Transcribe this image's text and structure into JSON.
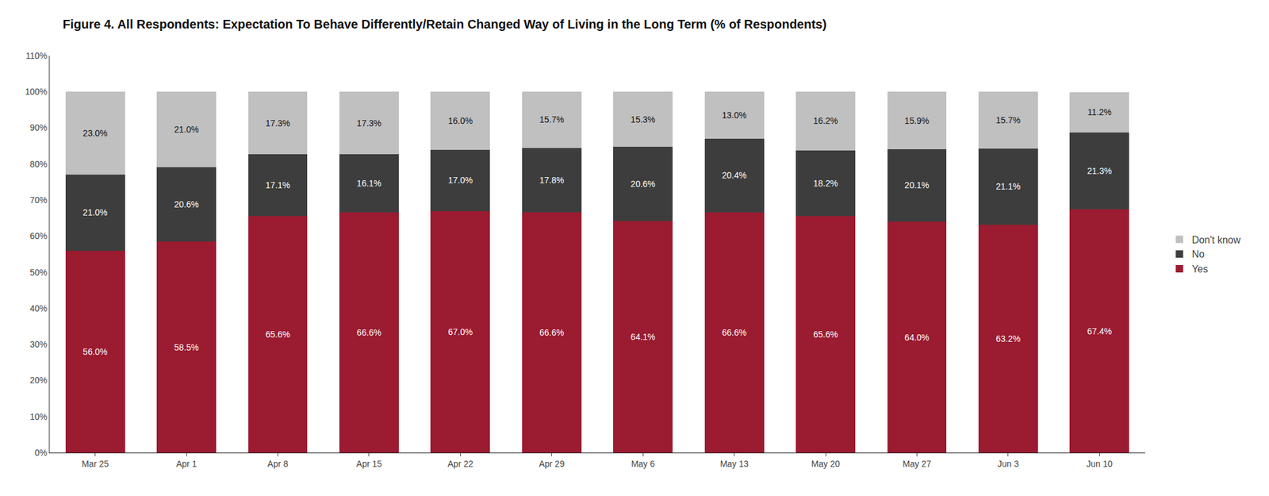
{
  "chart_data": {
    "type": "bar",
    "title": "Figure 4. All Respondents: Expectation To Behave Differently/Retain Changed Way of Living in the Long Term (% of Respondents)",
    "categories": [
      "Mar 25",
      "Apr 1",
      "Apr 8",
      "Apr 15",
      "Apr 22",
      "Apr 29",
      "May 6",
      "May 13",
      "May 20",
      "May 27",
      "Jun 3",
      "Jun 10"
    ],
    "series": [
      {
        "name": "Yes",
        "color": "#9B1B30",
        "values": [
          56.0,
          58.5,
          65.6,
          66.6,
          67.0,
          66.6,
          64.1,
          66.6,
          65.6,
          64.0,
          63.2,
          67.4
        ],
        "value_labels": [
          "56.0%",
          "58.5%",
          "65.6%",
          "66.6%",
          "67.0%",
          "66.6%",
          "64.1%",
          "66.6%",
          "65.6%",
          "64.0%",
          "63.2%",
          "67.4%"
        ]
      },
      {
        "name": "No",
        "color": "#3D3D3D",
        "values": [
          21.0,
          20.6,
          17.1,
          16.1,
          17.0,
          17.8,
          20.6,
          20.4,
          18.2,
          20.1,
          21.1,
          21.3
        ],
        "value_labels": [
          "21.0%",
          "20.6%",
          "17.1%",
          "16.1%",
          "17.0%",
          "17.8%",
          "20.6%",
          "20.4%",
          "18.2%",
          "20.1%",
          "21.1%",
          "21.3%"
        ]
      },
      {
        "name": "Don't know",
        "color": "#C0C0C0",
        "values": [
          23.0,
          21.0,
          17.3,
          17.3,
          16.0,
          15.7,
          15.3,
          13.0,
          16.2,
          15.9,
          15.7,
          11.2
        ],
        "value_labels": [
          "23.0%",
          "21.0%",
          "17.3%",
          "17.3%",
          "16.0%",
          "15.7%",
          "15.3%",
          "13.0%",
          "16.2%",
          "15.9%",
          "15.7%",
          "11.2%"
        ]
      }
    ],
    "ylim": [
      0,
      110
    ],
    "yticks": [
      {
        "value": 0,
        "label": "0%"
      },
      {
        "value": 10,
        "label": "10%"
      },
      {
        "value": 20,
        "label": "20%"
      },
      {
        "value": 30,
        "label": "30%"
      },
      {
        "value": 40,
        "label": "40%"
      },
      {
        "value": 50,
        "label": "50%"
      },
      {
        "value": 60,
        "label": "60%"
      },
      {
        "value": 70,
        "label": "70%"
      },
      {
        "value": 80,
        "label": "80%"
      },
      {
        "value": 90,
        "label": "90%"
      },
      {
        "value": 100,
        "label": "100%"
      },
      {
        "value": 110,
        "label": "110%"
      }
    ],
    "stacked": true,
    "data_labels": true,
    "grid": false,
    "legend": "right"
  }
}
